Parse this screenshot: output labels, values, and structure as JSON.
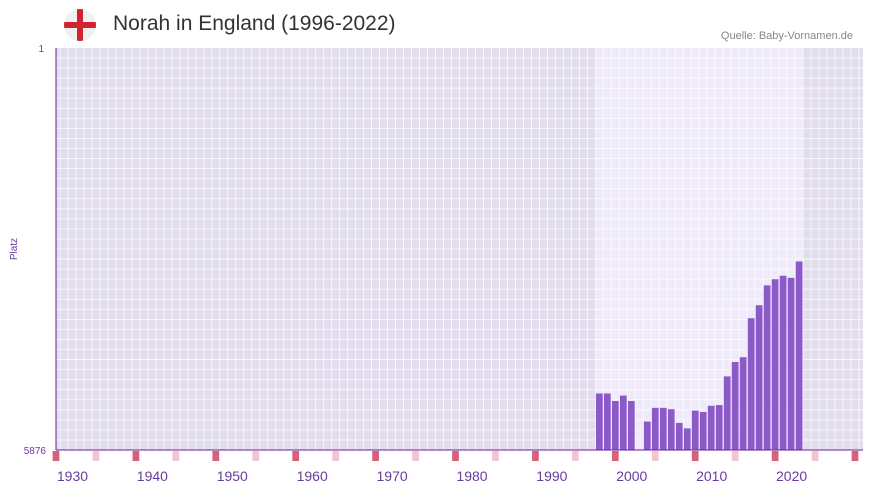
{
  "title": "Norah in England (1996-2022)",
  "source": "Quelle: Baby-Vornamen.de",
  "chart_data": {
    "type": "bar",
    "title": "Norah in England (1996-2022)",
    "ylabel": "Platz",
    "xlabel": "",
    "ylim": [
      1,
      5876
    ],
    "y_tick_labels": [
      "1",
      "5876"
    ],
    "xlim": [
      1928,
      2029
    ],
    "x_tick_labels": [
      "1930",
      "1940",
      "1950",
      "1960",
      "1970",
      "1980",
      "1990",
      "2000",
      "2010",
      "2020"
    ],
    "highlight_range": [
      1995.5,
      2021.5
    ],
    "series": [
      {
        "name": "Norah",
        "x": [
          1996,
          1997,
          1998,
          1999,
          2000,
          2002,
          2003,
          2004,
          2005,
          2006,
          2007,
          2008,
          2009,
          2010,
          2011,
          2012,
          2013,
          2014,
          2015,
          2016,
          2017,
          2018,
          2019,
          2020,
          2021
        ],
        "values": [
          5050,
          5050,
          5160,
          5080,
          5160,
          5460,
          5260,
          5260,
          5280,
          5480,
          5560,
          5300,
          5320,
          5230,
          5220,
          4800,
          4590,
          4520,
          3950,
          3760,
          3470,
          3380,
          3330,
          3360,
          3120
        ]
      }
    ],
    "colors": {
      "bar": "#8c5ac8",
      "axis": "#6a1b9a",
      "label": "#6a3ba0",
      "plot_bg": "#e2dded",
      "highlight_bg": "#efeaf9",
      "marker_major": "#d9607a",
      "marker_minor": "#f5c4ce",
      "flag_red": "#d0232e",
      "flag_white": "#f0f0f0"
    }
  }
}
